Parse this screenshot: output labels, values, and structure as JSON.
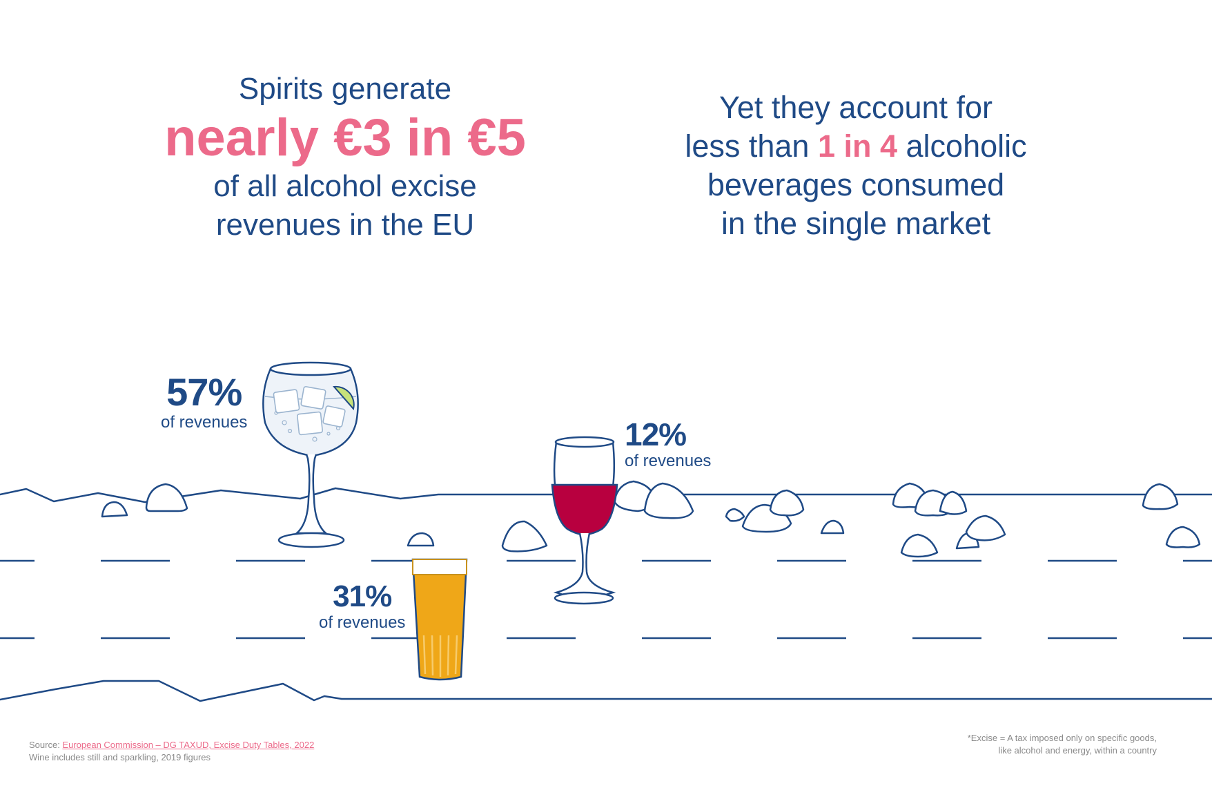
{
  "left_headline": {
    "line1": "Spirits generate",
    "highlight": "nearly €3 in €5",
    "line3": "of all alcohol excise",
    "line4": "revenues in the EU"
  },
  "right_headline": {
    "line1": "Yet they account for",
    "line2_before": "less than ",
    "line2_highlight": "1 in 4",
    "line2_after": " alcoholic",
    "line3": "beverages consumed",
    "line4": "in the single market"
  },
  "drinks": [
    {
      "name": "spirits",
      "percent_text": "57%",
      "caption": "of revenues",
      "share": 57
    },
    {
      "name": "wine",
      "percent_text": "12%",
      "caption": "of revenues",
      "share": 12
    },
    {
      "name": "beer",
      "percent_text": "31%",
      "caption": "of revenues",
      "share": 31
    }
  ],
  "footer": {
    "source_prefix": "Source: ",
    "source_link": "European Commission – DG TAXUD, Excise Duty Tables, 2022",
    "wine_note": "Wine includes still and sparkling, 2019 figures",
    "excise_note_1": "*Excise = A tax imposed only on specific goods,",
    "excise_note_2": "like alcohol and energy, within a country"
  },
  "colors": {
    "navy": "#1f4a86",
    "pink": "#ec6a8a",
    "wine": "#b8003f",
    "beer": "#efa718",
    "grey": "#8a8a8a"
  }
}
